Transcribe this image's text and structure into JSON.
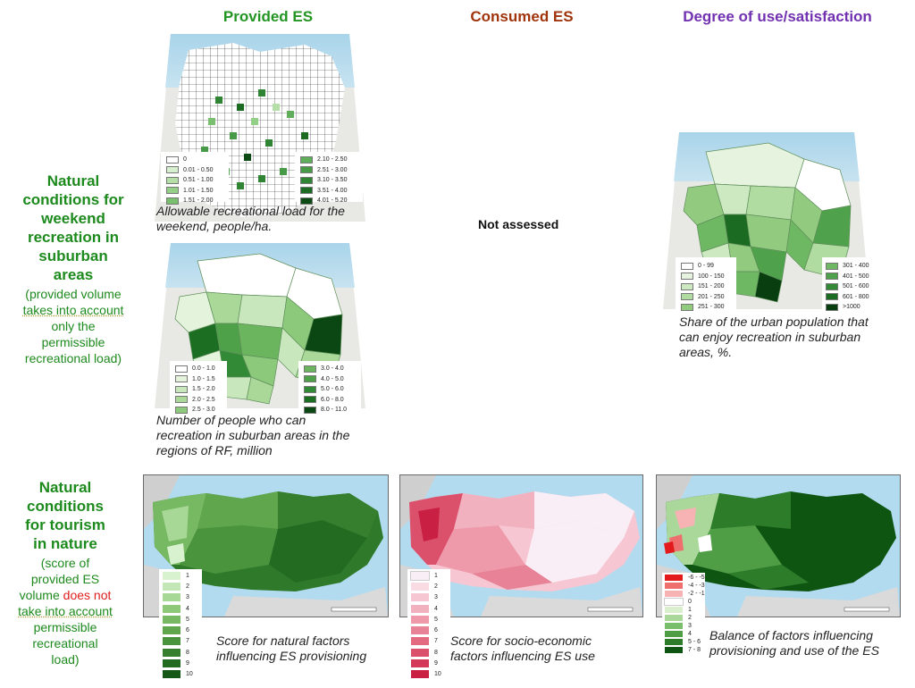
{
  "headers": {
    "provided": "Provided ES",
    "consumed": "Consumed ES",
    "degree": "Degree of use/satisfaction"
  },
  "colors": {
    "provided": "#229522",
    "consumed": "#a0340c",
    "degree": "#7131b0",
    "row_label": "#1d8a1d",
    "highlight_red": "#e0201f"
  },
  "row1": {
    "title_lines": [
      "Natural",
      "conditions for",
      "weekend",
      "recreation in",
      "suburban",
      "areas"
    ],
    "note_lines": [
      "(provided volume",
      "takes into account",
      "only the",
      "permissible",
      "recreational load)"
    ]
  },
  "row2": {
    "title_lines": [
      "Natural",
      "conditions",
      "for tourism",
      "in nature"
    ],
    "note_a": [
      "(score of",
      "provided ES",
      "volume"
    ],
    "note_red": "does not",
    "note_b": [
      "take into account",
      "permissible",
      "recreational",
      "load)"
    ]
  },
  "not_assessed": "Not assessed",
  "maps": {
    "load": {
      "caption_lines": [
        "Allowable recreational load for the",
        "weekend, people/ha."
      ],
      "legend_left": [
        {
          "label": "0",
          "color": "#ffffff"
        },
        {
          "label": "0.01 - 0.50",
          "color": "#d6efce"
        },
        {
          "label": "0.51 - 1.00",
          "color": "#b4e0a8"
        },
        {
          "label": "1.01 - 1.50",
          "color": "#93cf86"
        },
        {
          "label": "1.51 - 2.00",
          "color": "#78bf6e"
        }
      ],
      "legend_right": [
        {
          "label": "2.10 - 2.50",
          "color": "#5fae59"
        },
        {
          "label": "2.51 - 3.00",
          "color": "#479b46"
        },
        {
          "label": "3.10 - 3.50",
          "color": "#2f8533"
        },
        {
          "label": "3.51 - 4.00",
          "color": "#1c6b22"
        },
        {
          "label": "4.01 - 5.20",
          "color": "#0b4a13"
        }
      ]
    },
    "people": {
      "caption_lines": [
        "Number of people who can",
        "recreation in suburban areas in the",
        "regions of RF, million"
      ],
      "legend_left": [
        {
          "label": "0.0 - 1.0",
          "color": "#ffffff"
        },
        {
          "label": "1.0 - 1.5",
          "color": "#e4f3dc"
        },
        {
          "label": "1.5 - 2.0",
          "color": "#c9e7bd"
        },
        {
          "label": "2.0 - 2.5",
          "color": "#a9d899"
        },
        {
          "label": "2.5 - 3.0",
          "color": "#8cc97b"
        }
      ],
      "legend_right": [
        {
          "label": "3.0 - 4.0",
          "color": "#6bb55f"
        },
        {
          "label": "4.0 - 5.0",
          "color": "#4ea049"
        },
        {
          "label": "5.0 - 6.0",
          "color": "#338a36"
        },
        {
          "label": "6.0 - 8.0",
          "color": "#1c6e23"
        },
        {
          "label": "8.0 - 11.0",
          "color": "#0a4712"
        }
      ]
    },
    "share": {
      "caption_lines": [
        "Share of the urban population that",
        "can enjoy recreation in suburban",
        "areas, %."
      ],
      "legend_left": [
        {
          "label": "0 - 99",
          "color": "#ffffff"
        },
        {
          "label": "100 - 150",
          "color": "#e6f4df"
        },
        {
          "label": "151 - 200",
          "color": "#cde9c2"
        },
        {
          "label": "201 - 250",
          "color": "#b0dba1"
        },
        {
          "label": "251 - 300",
          "color": "#92cb80"
        }
      ],
      "legend_right": [
        {
          "label": "301 - 400",
          "color": "#6fb863"
        },
        {
          "label": "401 - 500",
          "color": "#4fa14b"
        },
        {
          "label": "501 - 600",
          "color": "#338935"
        },
        {
          "label": "601 - 800",
          "color": "#1b6b22"
        },
        {
          "label": ">1000",
          "color": "#093f10"
        }
      ]
    },
    "natural_score": {
      "caption_lines": [
        "Score for natural factors",
        "influencing ES provisioning"
      ],
      "legend": [
        {
          "label": "1",
          "color": "#d8f2cf"
        },
        {
          "label": "2",
          "color": "#c2e6b5"
        },
        {
          "label": "3",
          "color": "#a8d896"
        },
        {
          "label": "4",
          "color": "#8ec979"
        },
        {
          "label": "5",
          "color": "#76b962"
        },
        {
          "label": "6",
          "color": "#5fa64d"
        },
        {
          "label": "7",
          "color": "#4a943d"
        },
        {
          "label": "8",
          "color": "#367f2e"
        },
        {
          "label": "9",
          "color": "#246b22"
        },
        {
          "label": "10",
          "color": "#155716"
        }
      ]
    },
    "socio_score": {
      "caption_lines": [
        "Score for socio-economic",
        "factors influencing ES use"
      ],
      "legend": [
        {
          "label": "1",
          "color": "#f9eef6"
        },
        {
          "label": "2",
          "color": "#f9dbe4"
        },
        {
          "label": "3",
          "color": "#f6c7d2"
        },
        {
          "label": "4",
          "color": "#f2b1bf"
        },
        {
          "label": "5",
          "color": "#ee9aab"
        },
        {
          "label": "6",
          "color": "#e88296"
        },
        {
          "label": "7",
          "color": "#e26a81"
        },
        {
          "label": "8",
          "color": "#db516c"
        },
        {
          "label": "9",
          "color": "#d33858"
        },
        {
          "label": "10",
          "color": "#c91f43"
        }
      ]
    },
    "balance": {
      "caption_lines": [
        "Balance of factors influencing",
        "provisioning and use of the ES"
      ],
      "legend": [
        {
          "label": "-6 - -5",
          "color": "#e31a1c"
        },
        {
          "label": "-4 - -3",
          "color": "#ef6f6f"
        },
        {
          "label": "-2 - -1",
          "color": "#f7b3b3"
        },
        {
          "label": "0",
          "color": "#ffffff"
        },
        {
          "label": "1",
          "color": "#d9efce"
        },
        {
          "label": "2",
          "color": "#a9d89a"
        },
        {
          "label": "3",
          "color": "#79be6b"
        },
        {
          "label": "4",
          "color": "#4f9e45"
        },
        {
          "label": "5 - 6",
          "color": "#2c7c2a"
        },
        {
          "label": "7 - 8",
          "color": "#0f5512"
        }
      ]
    }
  }
}
